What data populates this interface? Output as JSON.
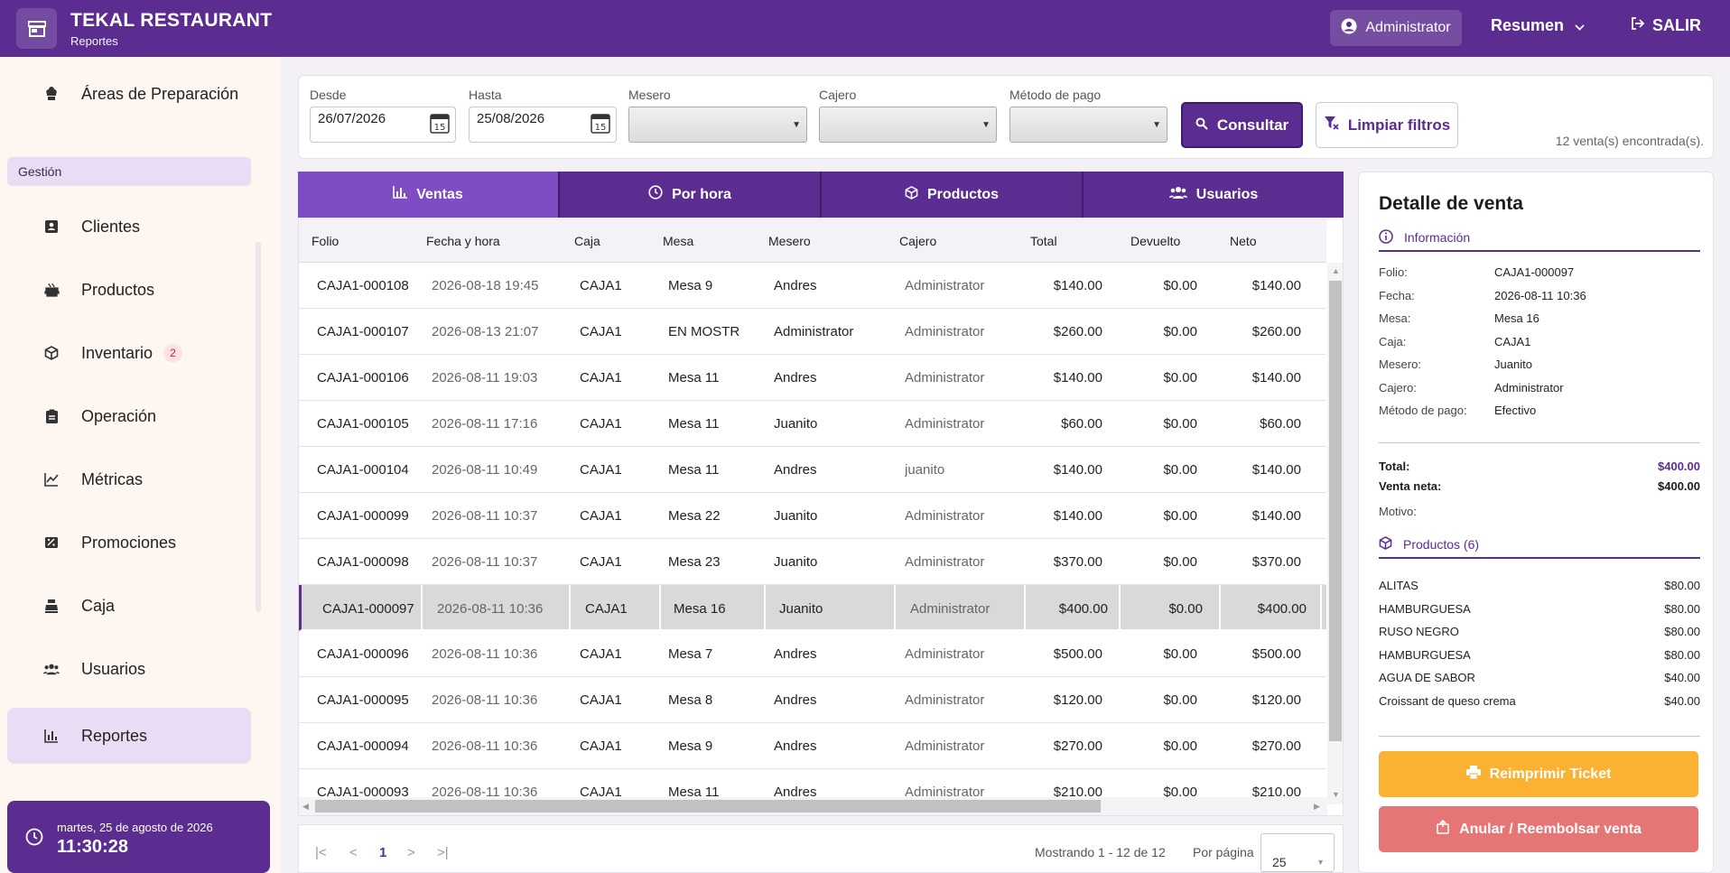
{
  "app": {
    "title": "TEKAL RESTAURANT",
    "subtitle": "Reportes"
  },
  "header": {
    "user_label": "Administrator",
    "resumen_label": "Resumen",
    "logout_label": "SALIR"
  },
  "sidebar": {
    "top_item": "Áreas de Preparación",
    "section_label": "Gestión",
    "items": [
      {
        "label": "Clientes",
        "icon": "contact-card-icon"
      },
      {
        "label": "Productos",
        "icon": "food-icon"
      },
      {
        "label": "Inventario",
        "icon": "box-icon",
        "badge": "2"
      },
      {
        "label": "Operación",
        "icon": "clipboard-icon"
      },
      {
        "label": "Métricas",
        "icon": "line-chart-icon"
      },
      {
        "label": "Promociones",
        "icon": "ticket-icon"
      },
      {
        "label": "Caja",
        "icon": "cash-register-icon"
      },
      {
        "label": "Usuarios",
        "icon": "users-icon"
      },
      {
        "label": "Reportes",
        "icon": "bar-chart-icon"
      }
    ],
    "clock": {
      "date": "martes, 25 de agosto de 2026",
      "time": "11:30:28"
    }
  },
  "filters": {
    "desde_label": "Desde",
    "desde_value": "26/07/2026",
    "hasta_label": "Hasta",
    "hasta_value": "25/08/2026",
    "mesero_label": "Mesero",
    "cajero_label": "Cajero",
    "metodo_label": "Método de pago",
    "consultar_label": "Consultar",
    "limpiar_label": "Limpiar filtros",
    "count_text": "12 venta(s) encontrada(s)."
  },
  "tabs": [
    "Ventas",
    "Por hora",
    "Productos",
    "Usuarios"
  ],
  "table": {
    "headers": [
      "Folio",
      "Fecha y hora",
      "Caja",
      "Mesa",
      "Mesero",
      "Cajero",
      "Total",
      "Devuelto",
      "Neto"
    ],
    "rows": [
      [
        "CAJA1-000108",
        "2026-08-18 19:45",
        "CAJA1",
        "Mesa 9",
        "Andres",
        "Administrator",
        "$140.00",
        "$0.00",
        "$140.00"
      ],
      [
        "CAJA1-000107",
        "2026-08-13 21:07",
        "CAJA1",
        "EN MOSTR",
        "Administrator",
        "Administrator",
        "$260.00",
        "$0.00",
        "$260.00"
      ],
      [
        "CAJA1-000106",
        "2026-08-11 19:03",
        "CAJA1",
        "Mesa 11",
        "Andres",
        "Administrator",
        "$140.00",
        "$0.00",
        "$140.00"
      ],
      [
        "CAJA1-000105",
        "2026-08-11 17:16",
        "CAJA1",
        "Mesa 11",
        "Juanito",
        "Administrator",
        "$60.00",
        "$0.00",
        "$60.00"
      ],
      [
        "CAJA1-000104",
        "2026-08-11 10:49",
        "CAJA1",
        "Mesa 11",
        "Andres",
        "juanito",
        "$140.00",
        "$0.00",
        "$140.00"
      ],
      [
        "CAJA1-000099",
        "2026-08-11 10:37",
        "CAJA1",
        "Mesa 22",
        "Juanito",
        "Administrator",
        "$140.00",
        "$0.00",
        "$140.00"
      ],
      [
        "CAJA1-000098",
        "2026-08-11 10:37",
        "CAJA1",
        "Mesa 23",
        "Juanito",
        "Administrator",
        "$370.00",
        "$0.00",
        "$370.00"
      ],
      [
        "CAJA1-000097",
        "2026-08-11 10:36",
        "CAJA1",
        "Mesa 16",
        "Juanito",
        "Administrator",
        "$400.00",
        "$0.00",
        "$400.00"
      ],
      [
        "CAJA1-000096",
        "2026-08-11 10:36",
        "CAJA1",
        "Mesa 7",
        "Andres",
        "Administrator",
        "$500.00",
        "$0.00",
        "$500.00"
      ],
      [
        "CAJA1-000095",
        "2026-08-11 10:36",
        "CAJA1",
        "Mesa 8",
        "Andres",
        "Administrator",
        "$120.00",
        "$0.00",
        "$120.00"
      ],
      [
        "CAJA1-000094",
        "2026-08-11 10:36",
        "CAJA1",
        "Mesa 9",
        "Andres",
        "Administrator",
        "$270.00",
        "$0.00",
        "$270.00"
      ],
      [
        "CAJA1-000093",
        "2026-08-11 10:36",
        "CAJA1",
        "Mesa 11",
        "Andres",
        "Administrator",
        "$210.00",
        "$0.00",
        "$210.00"
      ]
    ],
    "selected_index": 7
  },
  "pager": {
    "first": "|<",
    "prev": "<",
    "page": "1",
    "next": ">",
    "last": ">|",
    "showing": "Mostrando 1 - 12 de 12",
    "per_page_label": "Por página",
    "per_page_value": "25"
  },
  "detail": {
    "title": "Detalle de venta",
    "info_label": "Información",
    "fields": [
      [
        "Folio:",
        "CAJA1-000097"
      ],
      [
        "Fecha:",
        "2026-08-11 10:36"
      ],
      [
        "Mesa:",
        "Mesa 16"
      ],
      [
        "Caja:",
        "CAJA1"
      ],
      [
        "Mesero:",
        "Juanito"
      ],
      [
        "Cajero:",
        "Administrator"
      ],
      [
        "Método de pago:",
        "Efectivo"
      ]
    ],
    "total_label": "Total:",
    "total_value": "$400.00",
    "neta_label": "Venta neta:",
    "neta_value": "$400.00",
    "motivo_label": "Motivo:",
    "products_label": "Productos (6)",
    "products": [
      [
        "ALITAS",
        "$80.00"
      ],
      [
        "HAMBURGUESA",
        "$80.00"
      ],
      [
        "RUSO NEGRO",
        "$80.00"
      ],
      [
        "HAMBURGUESA",
        "$80.00"
      ],
      [
        "AGUA DE SABOR",
        "$40.00"
      ],
      [
        "Croissant de queso crema",
        "$40.00"
      ]
    ],
    "reprint_label": "Reimprimir Ticket",
    "anular_label": "Anular / Reembolsar venta"
  },
  "colors": {
    "primary": "#5b2d91",
    "tab_active": "#7e4cc4",
    "warning": "#fbb131",
    "danger": "#e67575"
  }
}
